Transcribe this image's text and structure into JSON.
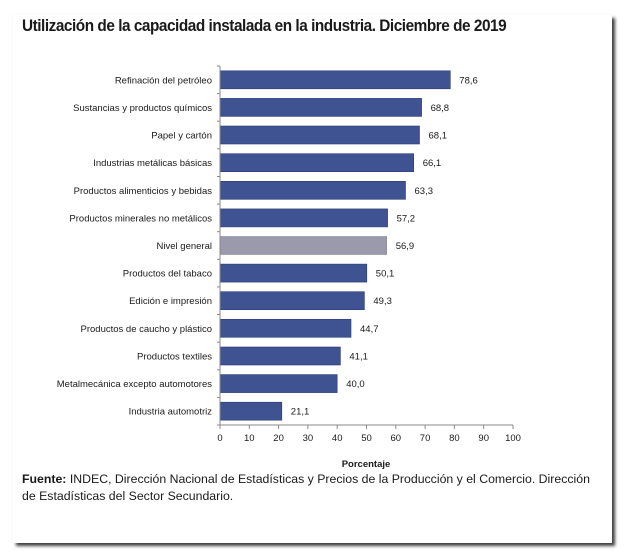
{
  "chart_data": {
    "type": "bar",
    "orientation": "horizontal",
    "title": "Utilización de la capacidad instalada en la industria. Diciembre de 2019",
    "xlabel": "Porcentaje",
    "ylabel": "",
    "xlim": [
      0,
      100
    ],
    "x_ticks": [
      "0",
      "10",
      "20",
      "30",
      "40",
      "50",
      "60",
      "70",
      "80",
      "90",
      "100"
    ],
    "grid": false,
    "legend": "none",
    "categories": [
      "Refinación del petróleo",
      "Sustancias y productos químicos",
      "Papel y cartón",
      "Industrias metálicas básicas",
      "Productos alimenticios y bebidas",
      "Productos minerales no metálicos",
      "Nivel general",
      "Productos del tabaco",
      "Edición e impresión",
      "Productos de caucho y plástico",
      "Productos textiles",
      "Metalmecánica excepto automotores",
      "Industria automotriz"
    ],
    "values": [
      78.6,
      68.8,
      68.1,
      66.1,
      63.3,
      57.2,
      56.9,
      50.1,
      49.3,
      44.7,
      41.1,
      40.0,
      21.1
    ],
    "value_labels": [
      "78,6",
      "68,8",
      "68,1",
      "66,1",
      "63,3",
      "57,2",
      "56,9",
      "50,1",
      "49,3",
      "44,7",
      "41,1",
      "40,0",
      "21,1"
    ],
    "highlight_category": "Nivel general",
    "colors": {
      "bar": "#3f5393",
      "bar_highlight": "#9a9aac",
      "bar_outline": "#2c3c75",
      "axis": "#8a8a8a",
      "text": "#1a1a1a"
    }
  },
  "source": {
    "label": "Fuente:",
    "text": " INDEC, Dirección Nacional de Estadísticas y Precios de la Producción y el Comercio. Dirección de Estadísticas del Sector Secundario."
  }
}
